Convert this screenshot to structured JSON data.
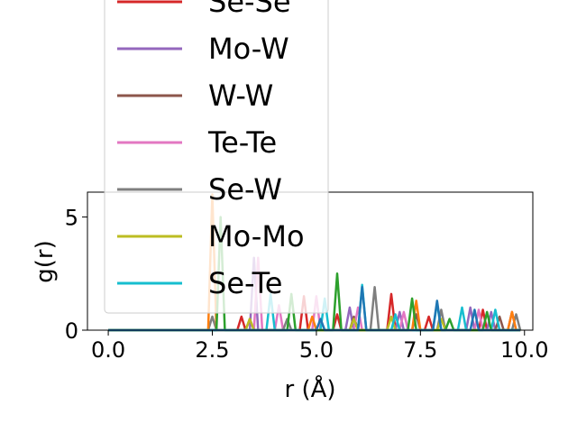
{
  "chart_data": {
    "type": "line",
    "title": "",
    "xlabel": "r (Å)",
    "ylabel": "g(r)",
    "xlim": [
      -0.5,
      10.2
    ],
    "ylim": [
      0,
      6.1
    ],
    "xticks": [
      0.0,
      2.5,
      5.0,
      7.5,
      10.0
    ],
    "xtick_labels": [
      "0.0",
      "2.5",
      "5.0",
      "7.5",
      "10.0"
    ],
    "yticks": [
      0,
      5
    ],
    "ytick_labels": [
      "0",
      "5"
    ],
    "legend_placement": "upper-left (overflowing above the axes)",
    "series": [
      {
        "name": "Se-Se",
        "color": "#d62728",
        "points": [
          [
            0,
            0
          ],
          [
            3.1,
            0
          ],
          [
            3.2,
            0.6
          ],
          [
            3.3,
            0
          ],
          [
            4.6,
            0
          ],
          [
            4.7,
            1.5
          ],
          [
            4.8,
            0
          ],
          [
            5.4,
            0
          ],
          [
            5.5,
            0.7
          ],
          [
            5.6,
            0
          ],
          [
            6.7,
            0
          ],
          [
            6.8,
            1.6
          ],
          [
            6.9,
            0
          ],
          [
            7.6,
            0
          ],
          [
            7.7,
            0.6
          ],
          [
            7.8,
            0
          ],
          [
            8.9,
            0
          ],
          [
            9.0,
            0.9
          ],
          [
            9.1,
            0
          ],
          [
            9.6,
            0
          ],
          [
            9.7,
            0.8
          ],
          [
            9.8,
            0
          ],
          [
            9.9,
            0
          ]
        ]
      },
      {
        "name": "Mo-W",
        "color": "#9467bd",
        "points": [
          [
            0,
            0
          ],
          [
            3.4,
            0
          ],
          [
            3.5,
            3.2
          ],
          [
            3.6,
            0
          ],
          [
            5.7,
            0
          ],
          [
            5.8,
            1.0
          ],
          [
            5.9,
            0
          ],
          [
            6.9,
            0
          ],
          [
            7.0,
            0.8
          ],
          [
            7.1,
            0
          ],
          [
            8.6,
            0
          ],
          [
            8.7,
            1.0
          ],
          [
            8.8,
            0
          ],
          [
            9.1,
            0
          ],
          [
            9.2,
            0.8
          ],
          [
            9.3,
            0
          ],
          [
            9.9,
            0
          ]
        ]
      },
      {
        "name": "W-W",
        "color": "#8c564b",
        "points": [
          [
            0,
            0
          ],
          [
            3.3,
            0
          ],
          [
            3.4,
            0.5
          ],
          [
            3.5,
            0
          ],
          [
            5.8,
            0
          ],
          [
            5.9,
            0.6
          ],
          [
            6.0,
            0
          ],
          [
            7.3,
            0
          ],
          [
            7.4,
            0.7
          ],
          [
            7.5,
            0
          ],
          [
            9.3,
            0
          ],
          [
            9.4,
            0.6
          ],
          [
            9.5,
            0
          ],
          [
            9.9,
            0
          ]
        ]
      },
      {
        "name": "Te-Te",
        "color": "#e377c2",
        "points": [
          [
            0,
            0
          ],
          [
            3.5,
            0
          ],
          [
            3.6,
            3.2
          ],
          [
            3.7,
            0
          ],
          [
            4.0,
            0
          ],
          [
            4.1,
            1.1
          ],
          [
            4.2,
            0
          ],
          [
            4.9,
            0
          ],
          [
            5.0,
            1.5
          ],
          [
            5.1,
            0
          ],
          [
            5.9,
            0
          ],
          [
            6.0,
            1.0
          ],
          [
            6.1,
            0
          ],
          [
            7.0,
            0
          ],
          [
            7.1,
            0.8
          ],
          [
            7.2,
            0
          ],
          [
            8.8,
            0
          ],
          [
            8.9,
            0.9
          ],
          [
            9.0,
            0
          ],
          [
            9.9,
            0
          ]
        ]
      },
      {
        "name": "Se-W",
        "color": "#7f7f7f",
        "points": [
          [
            0,
            0
          ],
          [
            2.4,
            0
          ],
          [
            2.5,
            0.6
          ],
          [
            2.6,
            0
          ],
          [
            4.2,
            0
          ],
          [
            4.3,
            0.5
          ],
          [
            4.4,
            0
          ],
          [
            6.3,
            0
          ],
          [
            6.4,
            1.9
          ],
          [
            6.5,
            0
          ],
          [
            7.9,
            0
          ],
          [
            8.0,
            0.9
          ],
          [
            8.1,
            0
          ],
          [
            9.7,
            0
          ],
          [
            9.8,
            0.7
          ],
          [
            9.9,
            0
          ]
        ]
      },
      {
        "name": "Mo-Mo",
        "color": "#bcbd22",
        "points": [
          [
            0,
            0
          ],
          [
            3.3,
            0
          ],
          [
            3.4,
            0.5
          ],
          [
            3.5,
            0
          ],
          [
            5.8,
            0
          ],
          [
            5.9,
            0.5
          ],
          [
            6.0,
            0
          ],
          [
            6.7,
            0
          ],
          [
            6.8,
            0.6
          ],
          [
            6.9,
            0
          ],
          [
            7.9,
            0
          ],
          [
            8.0,
            0.5
          ],
          [
            8.1,
            0
          ],
          [
            9.9,
            0
          ]
        ]
      },
      {
        "name": "Se-Te",
        "color": "#17becf",
        "points": [
          [
            0,
            0
          ],
          [
            3.8,
            0
          ],
          [
            3.9,
            1.6
          ],
          [
            4.0,
            0
          ],
          [
            5.1,
            0
          ],
          [
            5.2,
            1.4
          ],
          [
            5.3,
            0
          ],
          [
            6.0,
            0
          ],
          [
            6.1,
            2.0
          ],
          [
            6.2,
            0
          ],
          [
            6.8,
            0
          ],
          [
            6.9,
            0.7
          ],
          [
            7.0,
            0
          ],
          [
            7.8,
            0
          ],
          [
            7.9,
            1.2
          ],
          [
            8.0,
            0
          ],
          [
            8.4,
            0
          ],
          [
            8.5,
            1.0
          ],
          [
            8.6,
            0
          ],
          [
            9.2,
            0
          ],
          [
            9.3,
            0.9
          ],
          [
            9.4,
            0
          ],
          [
            9.9,
            0
          ]
        ]
      },
      {
        "name": "",
        "color": "#ff7f0e",
        "points": [
          [
            0,
            0
          ],
          [
            2.4,
            0
          ],
          [
            2.5,
            6.0
          ],
          [
            2.6,
            0
          ],
          [
            4.8,
            0
          ],
          [
            4.9,
            0.6
          ],
          [
            5.0,
            0
          ],
          [
            7.3,
            0
          ],
          [
            7.4,
            1.3
          ],
          [
            7.5,
            0
          ],
          [
            9.6,
            0
          ],
          [
            9.7,
            0.8
          ],
          [
            9.8,
            0
          ],
          [
            9.9,
            0
          ]
        ]
      },
      {
        "name": "",
        "color": "#2ca02c",
        "points": [
          [
            0,
            0
          ],
          [
            2.6,
            0
          ],
          [
            2.7,
            5.0
          ],
          [
            2.8,
            0
          ],
          [
            4.3,
            0
          ],
          [
            4.4,
            1.6
          ],
          [
            4.5,
            0
          ],
          [
            5.4,
            0
          ],
          [
            5.5,
            2.5
          ],
          [
            5.6,
            0
          ],
          [
            7.2,
            0
          ],
          [
            7.3,
            1.4
          ],
          [
            7.4,
            0
          ],
          [
            8.1,
            0
          ],
          [
            8.2,
            0.5
          ],
          [
            8.3,
            0
          ],
          [
            9.0,
            0
          ],
          [
            9.1,
            0.8
          ],
          [
            9.2,
            0
          ],
          [
            9.9,
            0
          ]
        ]
      },
      {
        "name": "",
        "color": "#1f77b4",
        "points": [
          [
            0,
            0
          ],
          [
            5.0,
            0
          ],
          [
            5.1,
            0.5
          ],
          [
            5.2,
            0
          ],
          [
            6.0,
            0
          ],
          [
            6.1,
            1.9
          ],
          [
            6.2,
            0
          ],
          [
            7.8,
            0
          ],
          [
            7.9,
            1.3
          ],
          [
            8.0,
            0
          ],
          [
            8.7,
            0
          ],
          [
            8.8,
            0.9
          ],
          [
            8.9,
            0
          ],
          [
            9.9,
            0
          ]
        ]
      }
    ],
    "legend": [
      {
        "name": "Se-Se",
        "color": "#d62728"
      },
      {
        "name": "Mo-W",
        "color": "#9467bd"
      },
      {
        "name": "W-W",
        "color": "#8c564b"
      },
      {
        "name": "Te-Te",
        "color": "#e377c2"
      },
      {
        "name": "Se-W",
        "color": "#7f7f7f"
      },
      {
        "name": "Mo-Mo",
        "color": "#bcbd22"
      },
      {
        "name": "Se-Te",
        "color": "#17becf"
      }
    ]
  }
}
